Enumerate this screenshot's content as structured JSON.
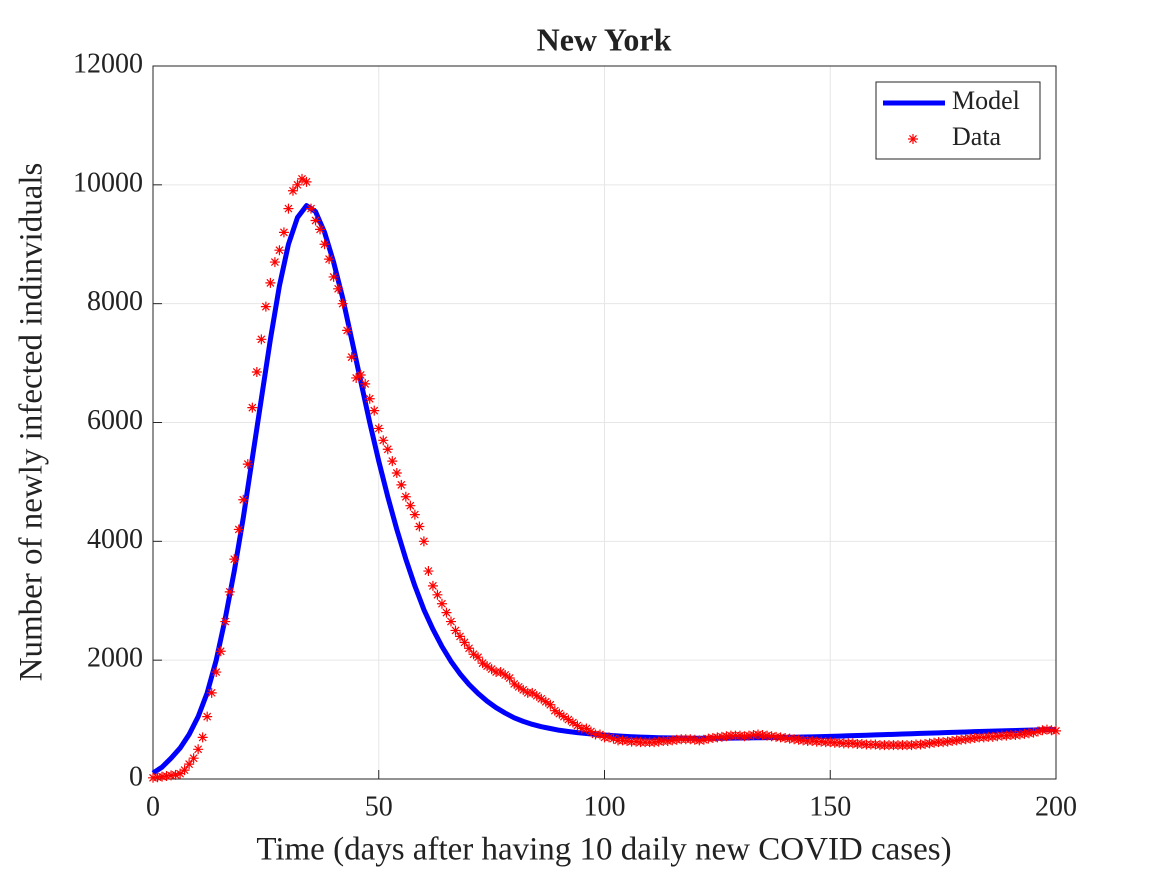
{
  "chart_data": {
    "type": "line",
    "title": "New York",
    "xlabel": "Time (days after having 10 daily new COVID cases)",
    "ylabel": "Number of newly infected indinviduals",
    "xlim": [
      0,
      200
    ],
    "xticks": [
      0,
      50,
      100,
      150,
      200
    ],
    "ylim": [
      0,
      12000
    ],
    "yticks": [
      0,
      2000,
      4000,
      6000,
      8000,
      10000,
      12000
    ],
    "grid": true,
    "legend": "top-right",
    "series": [
      {
        "name": "Model",
        "color": "#0000ff",
        "style": "line",
        "x": [
          0,
          2,
          4,
          6,
          8,
          10,
          12,
          14,
          16,
          18,
          20,
          22,
          24,
          26,
          28,
          30,
          32,
          34,
          36,
          38,
          40,
          42,
          44,
          46,
          48,
          50,
          52,
          54,
          56,
          58,
          60,
          62,
          64,
          66,
          68,
          70,
          72,
          74,
          76,
          78,
          80,
          82,
          84,
          86,
          88,
          90,
          92,
          94,
          96,
          98,
          100,
          102,
          104,
          106,
          108,
          110,
          112,
          114,
          116,
          118,
          120,
          122,
          124,
          126,
          128,
          130,
          132,
          134,
          136,
          138,
          140,
          142,
          144,
          146,
          148,
          150,
          152,
          154,
          156,
          158,
          160,
          162,
          164,
          166,
          168,
          170,
          172,
          174,
          176,
          178,
          180,
          182,
          184,
          186,
          188,
          190,
          192,
          194,
          196,
          198,
          200
        ],
        "values": [
          100,
          200,
          350,
          520,
          750,
          1050,
          1450,
          2000,
          2700,
          3500,
          4400,
          5400,
          6400,
          7400,
          8300,
          9000,
          9450,
          9650,
          9550,
          9200,
          8700,
          8100,
          7400,
          6700,
          6000,
          5350,
          4750,
          4200,
          3700,
          3250,
          2850,
          2520,
          2230,
          1980,
          1770,
          1590,
          1440,
          1310,
          1200,
          1110,
          1030,
          970,
          920,
          880,
          850,
          820,
          800,
          780,
          765,
          750,
          740,
          730,
          720,
          712,
          705,
          700,
          695,
          692,
          690,
          688,
          686,
          685,
          685,
          686,
          688,
          690,
          692,
          694,
          696,
          698,
          700,
          703,
          706,
          710,
          714,
          718,
          722,
          727,
          732,
          737,
          742,
          747,
          752,
          757,
          762,
          767,
          772,
          777,
          782,
          787,
          792,
          797,
          802,
          806,
          810,
          814,
          818,
          822,
          826,
          830,
          834
        ]
      },
      {
        "name": "Data",
        "color": "#ff0000",
        "style": "asterisk",
        "x": [
          0,
          1,
          2,
          3,
          4,
          5,
          6,
          7,
          8,
          9,
          10,
          11,
          12,
          13,
          14,
          15,
          16,
          17,
          18,
          19,
          20,
          21,
          22,
          23,
          24,
          25,
          26,
          27,
          28,
          29,
          30,
          31,
          32,
          33,
          34,
          35,
          36,
          37,
          38,
          39,
          40,
          41,
          42,
          43,
          44,
          45,
          46,
          47,
          48,
          49,
          50,
          51,
          52,
          53,
          54,
          55,
          56,
          57,
          58,
          59,
          60,
          61,
          62,
          63,
          64,
          65,
          66,
          67,
          68,
          69,
          70,
          71,
          72,
          73,
          74,
          75,
          76,
          77,
          78,
          79,
          80,
          81,
          82,
          83,
          84,
          85,
          86,
          87,
          88,
          89,
          90,
          91,
          92,
          93,
          94,
          95,
          96,
          97,
          98,
          99,
          100,
          101,
          102,
          103,
          104,
          105,
          106,
          107,
          108,
          109,
          110,
          111,
          112,
          113,
          114,
          115,
          116,
          117,
          118,
          119,
          120,
          121,
          122,
          123,
          124,
          125,
          126,
          127,
          128,
          129,
          130,
          131,
          132,
          133,
          134,
          135,
          136,
          137,
          138,
          139,
          140,
          141,
          142,
          143,
          144,
          145,
          146,
          147,
          148,
          149,
          150,
          151,
          152,
          153,
          154,
          155,
          156,
          157,
          158,
          159,
          160,
          161,
          162,
          163,
          164,
          165,
          166,
          167,
          168,
          169,
          170,
          171,
          172,
          173,
          174,
          175,
          176,
          177,
          178,
          179,
          180,
          181,
          182,
          183,
          184,
          185,
          186,
          187,
          188,
          189,
          190,
          191,
          192,
          193,
          194,
          195,
          196,
          197,
          198,
          199,
          200
        ],
        "values": [
          20,
          30,
          40,
          50,
          60,
          70,
          90,
          150,
          250,
          350,
          500,
          700,
          1050,
          1450,
          1800,
          2150,
          2650,
          3150,
          3700,
          4200,
          4700,
          5300,
          6250,
          6850,
          7400,
          7950,
          8350,
          8700,
          8900,
          9200,
          9600,
          9900,
          10000,
          10100,
          10050,
          9600,
          9400,
          9250,
          9000,
          8750,
          8450,
          8250,
          8000,
          7550,
          7100,
          6750,
          6800,
          6650,
          6400,
          6200,
          5900,
          5700,
          5550,
          5350,
          5150,
          4950,
          4750,
          4600,
          4450,
          4250,
          4000,
          3500,
          3250,
          3100,
          2950,
          2800,
          2650,
          2500,
          2400,
          2300,
          2200,
          2100,
          2050,
          1950,
          1900,
          1850,
          1800,
          1800,
          1750,
          1700,
          1600,
          1550,
          1500,
          1450,
          1450,
          1400,
          1350,
          1300,
          1250,
          1150,
          1100,
          1050,
          1000,
          950,
          900,
          850,
          850,
          800,
          750,
          750,
          700,
          700,
          680,
          650,
          650,
          640,
          630,
          630,
          620,
          620,
          620,
          620,
          630,
          640,
          640,
          650,
          660,
          670,
          670,
          670,
          660,
          650,
          660,
          680,
          690,
          700,
          710,
          720,
          730,
          730,
          730,
          720,
          730,
          740,
          750,
          740,
          730,
          720,
          710,
          700,
          690,
          680,
          670,
          660,
          650,
          640,
          640,
          630,
          630,
          620,
          620,
          610,
          610,
          600,
          600,
          600,
          590,
          590,
          580,
          580,
          580,
          570,
          570,
          570,
          570,
          570,
          570,
          570,
          570,
          580,
          580,
          590,
          600,
          610,
          620,
          620,
          630,
          640,
          650,
          660,
          670,
          680,
          690,
          700,
          700,
          710,
          710,
          720,
          730,
          730,
          740,
          740,
          750,
          760,
          770,
          780,
          800,
          820,
          830,
          820,
          810
        ]
      }
    ]
  }
}
